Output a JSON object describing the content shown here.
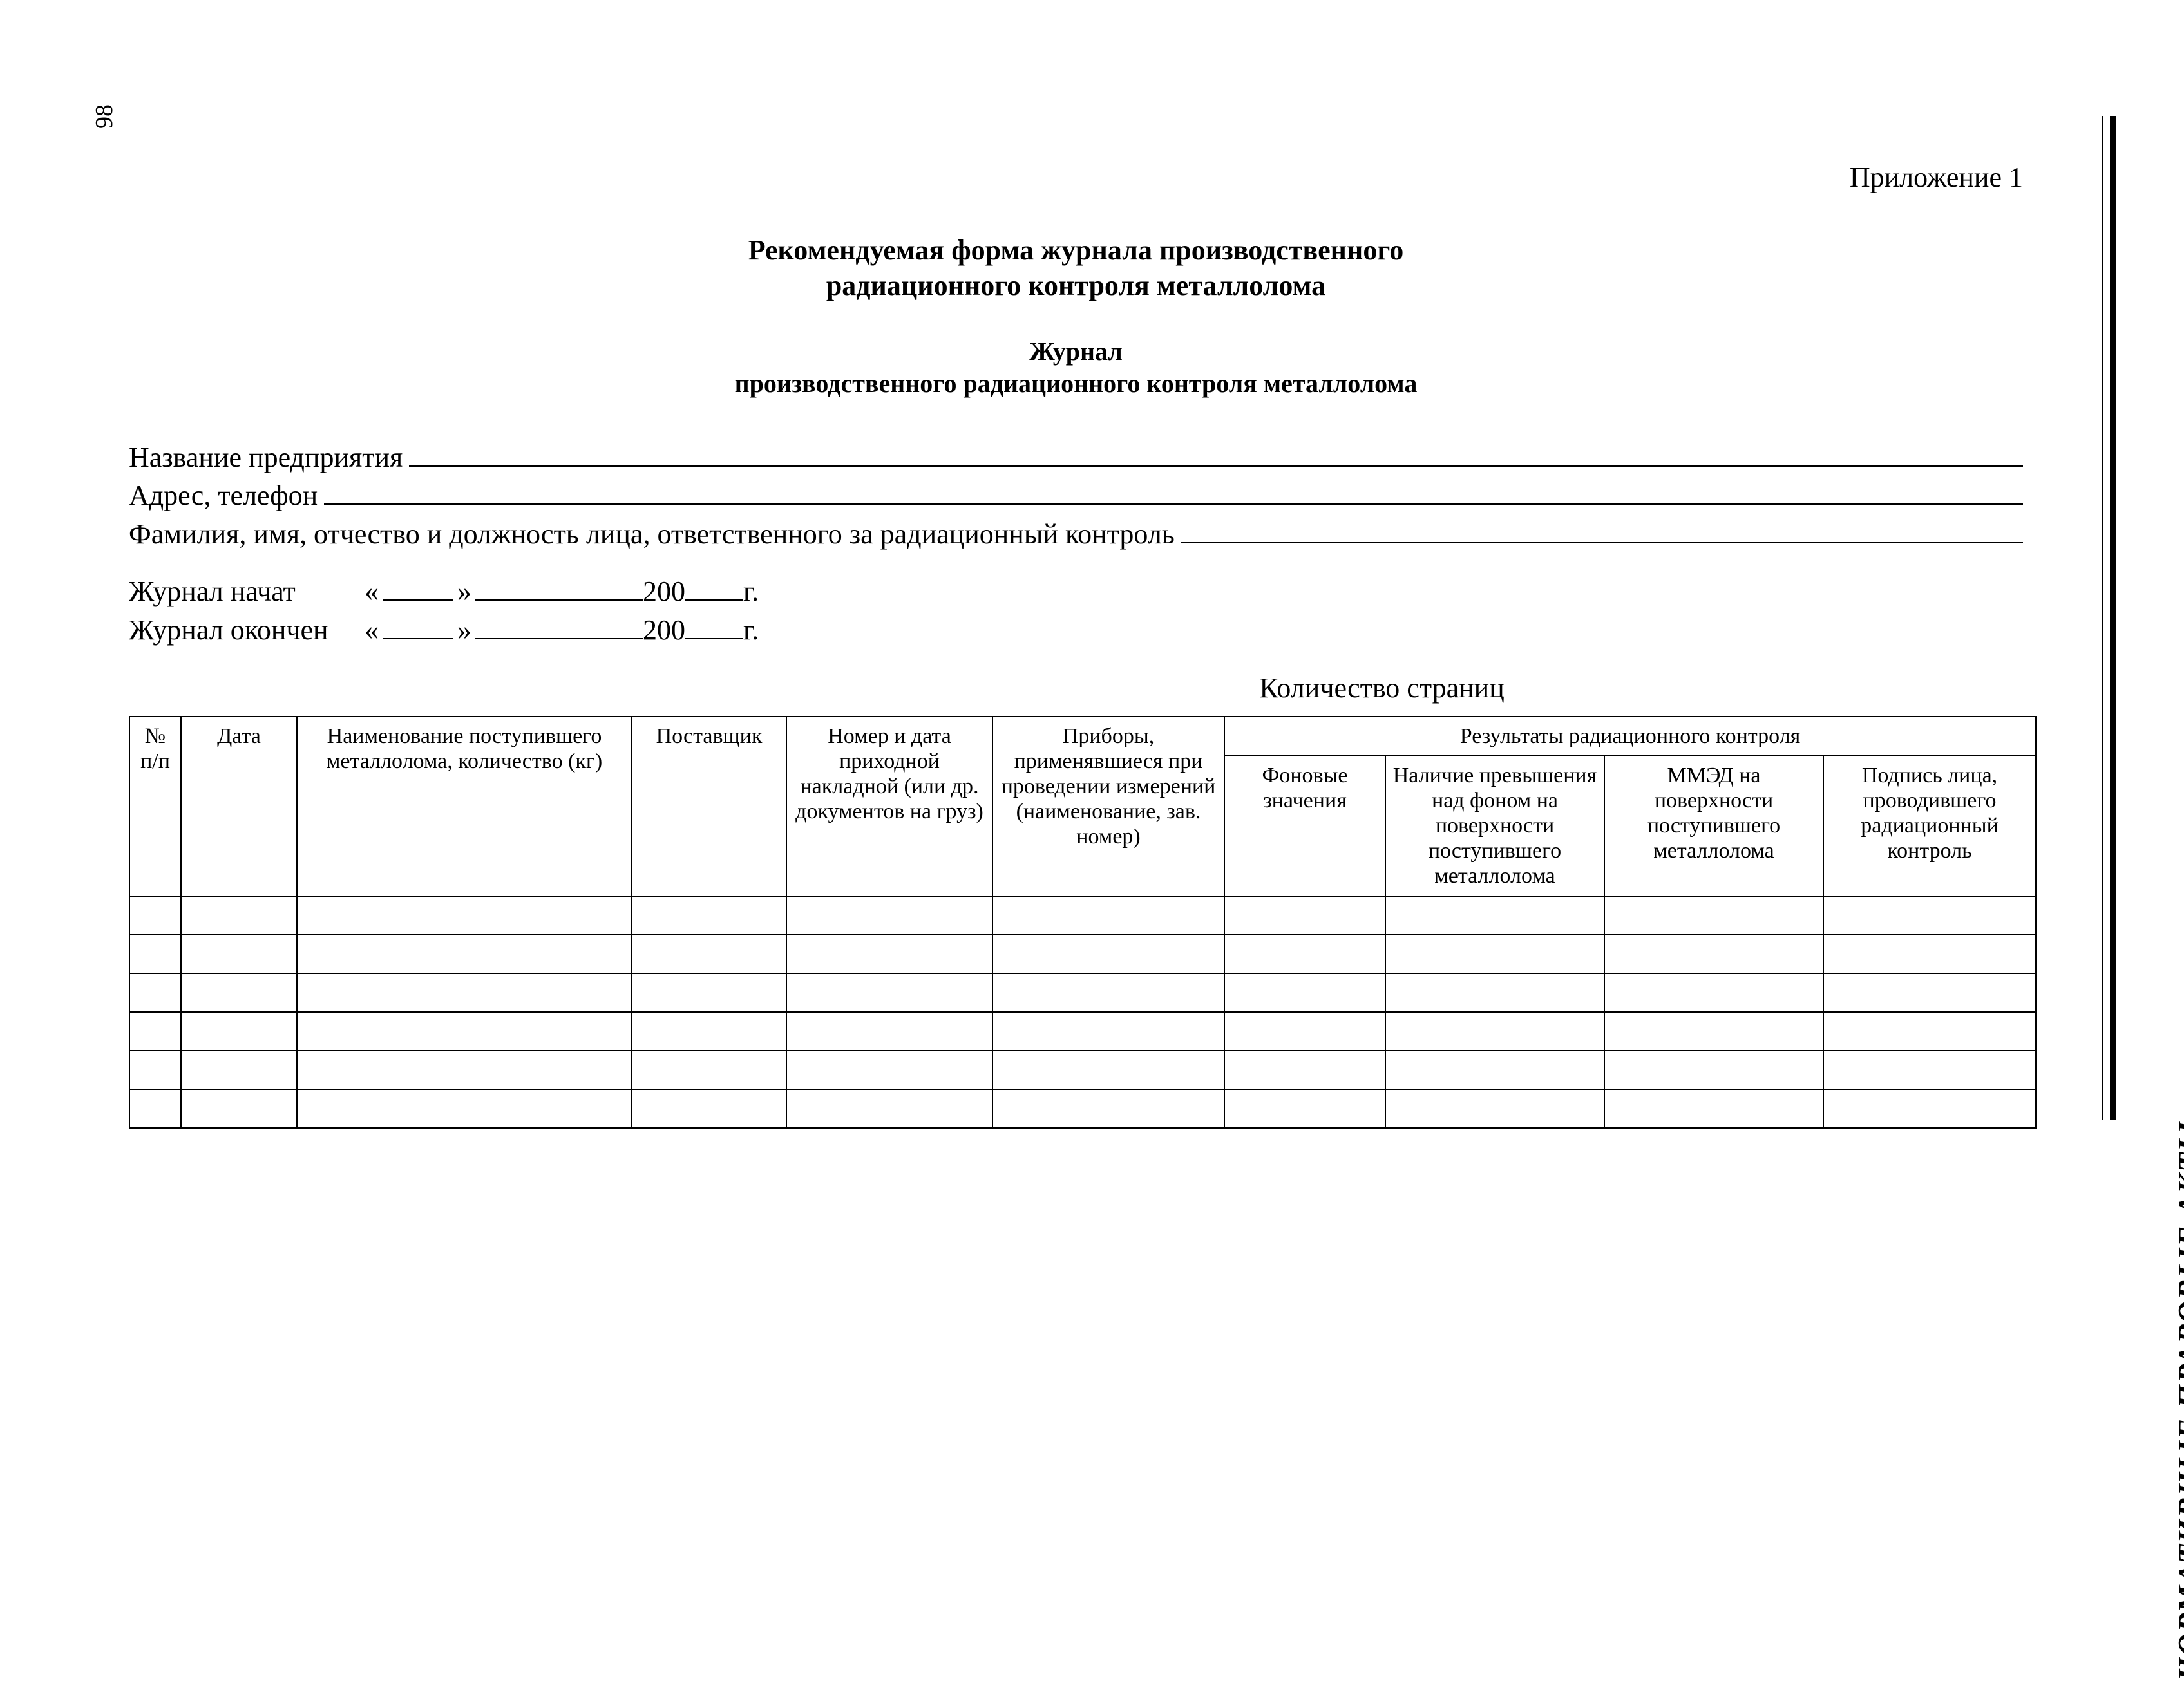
{
  "page_number": "98",
  "side_title": "НОРМАТИВНЫЕ ПРАВОВЫЕ АКТЫ",
  "appendix": "Приложение 1",
  "title_line1": "Рекомендуемая форма журнала производственного",
  "title_line2": "радиационного контроля металлолома",
  "subtitle_line1": "Журнал",
  "subtitle_line2": "производственного радиационного контроля металлолома",
  "fields": {
    "org_label": "Название предприятия",
    "addr_label": "Адрес, телефон",
    "resp_label": "Фамилия, имя, отчество и должность лица, ответственного за радиационный контроль"
  },
  "dates": {
    "started_label": "Журнал начат",
    "finished_label": "Журнал окончен",
    "open_quote": "«",
    "close_quote": "»",
    "year_prefix": "200",
    "year_suffix": "г."
  },
  "page_count_label": "Количество страниц",
  "table": {
    "columns": {
      "c1": "№ п/п",
      "c2": "Дата",
      "c3": "Наименование поступившего металлолома, количество (кг)",
      "c4": "Поставщик",
      "c5": "Номер и дата приходной накладной (или др. документов на груз)",
      "c6": "Приборы, применявшиеся при проведении измерений (наименование, зав. номер)",
      "group": "Результаты радиационного контроля",
      "c7": "Фоновые значения",
      "c8": "Наличие превышения над фоном на поверхности поступившего металлолома",
      "c9": "ММЭД на поверхности поступившего металлолома",
      "c10": "Подпись лица, проводившего радиационный контроль"
    },
    "empty_rows": 6
  },
  "colors": {
    "text": "#000000",
    "background": "#ffffff",
    "border": "#000000"
  }
}
